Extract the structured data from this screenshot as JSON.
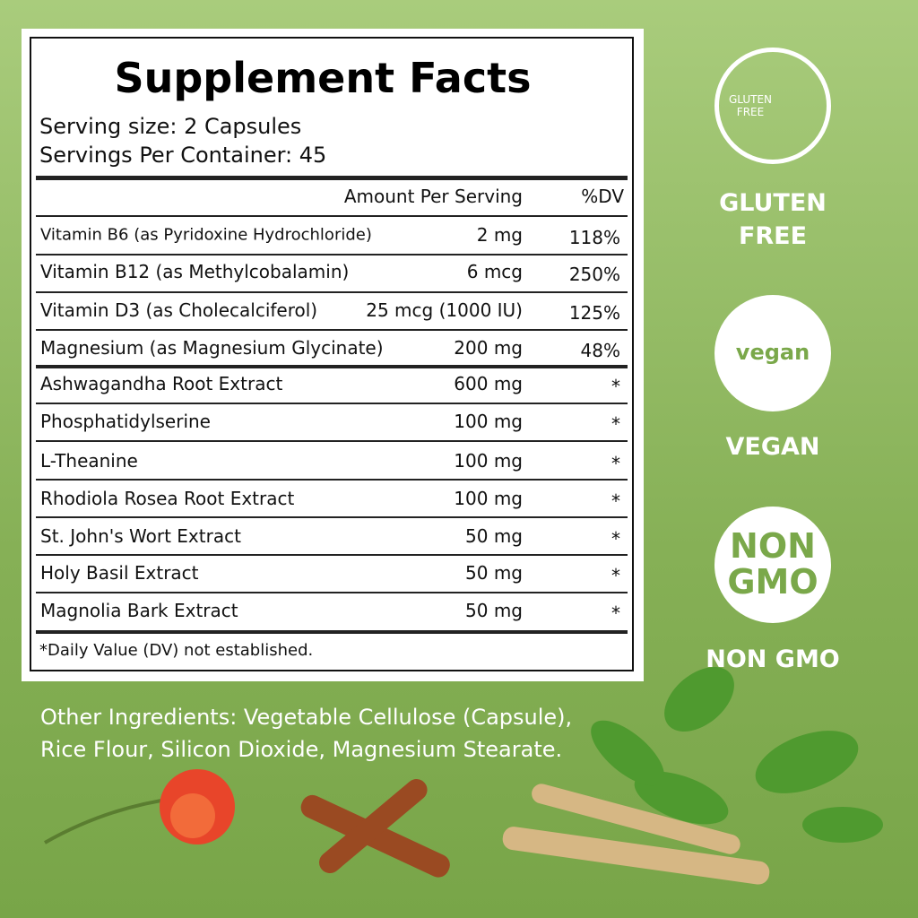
{
  "label": {
    "title": "Supplement Facts",
    "serving_size": "Serving size: 2 Capsules",
    "servings_per_container": "Servings Per Container: 45",
    "header": {
      "amount": "Amount Per Serving",
      "dv": "%DV"
    },
    "rows": [
      [
        "Vitamin B6 (as Pyridoxine Hydrochloride)",
        "2 mg",
        "118%"
      ],
      [
        "Vitamin B12 (as Methylcobalamin)",
        "6 mcg",
        "250%"
      ],
      [
        "Vitamin D3 (as Cholecalciferol)",
        "25 mcg (1000 IU)",
        "125%"
      ],
      [
        "Magnesium (as Magnesium Glycinate)",
        "200 mg",
        "48%"
      ],
      [
        "Ashwagandha Root Extract",
        "600 mg",
        "*"
      ],
      [
        "Phosphatidylserine",
        "100 mg",
        "*"
      ],
      [
        "L-Theanine",
        "100 mg",
        "*"
      ],
      [
        "Rhodiola Rosea Root Extract",
        "100 mg",
        "*"
      ],
      [
        "St. John's Wort Extract",
        "50 mg",
        "*"
      ],
      [
        "Holy Basil Extract",
        "50 mg",
        "*"
      ],
      [
        "Magnolia Bark Extract",
        "50 mg",
        "*"
      ]
    ],
    "footnote": "*Daily Value (DV) not established."
  },
  "other_ingredients": [
    "Other Ingredients: Vegetable Cellulose (Capsule),",
    "Rice Flour, Silicon Dioxide, Magnesium Stearate."
  ],
  "badges": [
    {
      "icon_text": [
        "GLUTEN",
        "FREE"
      ],
      "label": [
        "GLUTEN",
        "FREE"
      ]
    },
    {
      "icon_text": [
        "vegan"
      ],
      "label": [
        "VEGAN"
      ]
    },
    {
      "icon_text": [
        "NON",
        "GMO"
      ],
      "label": [
        "NON GMO"
      ]
    }
  ]
}
